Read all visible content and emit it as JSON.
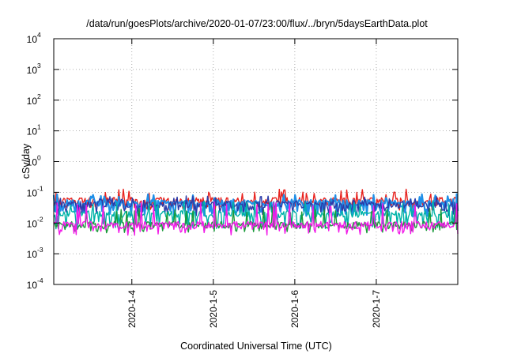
{
  "chart_data": {
    "type": "line",
    "title": "/data/run/goesPlots/archive/2020-01-07/23:00/flux/../bryn/5daysEarthData.plot",
    "xlabel": "Coordinated Universal Time (UTC)",
    "ylabel": "cSv/day",
    "yscale": "log",
    "ylim": [
      0.0001,
      10000
    ],
    "xlim": [
      "2020-01-03T01:00",
      "2020-01-08T00:00"
    ],
    "x_ticks": [
      "2020-1-4",
      "2020-1-5",
      "2020-1-6",
      "2020-1-7"
    ],
    "y_ticks": [
      {
        "base": "10",
        "exp": "4"
      },
      {
        "base": "10",
        "exp": "3"
      },
      {
        "base": "10",
        "exp": "2"
      },
      {
        "base": "10",
        "exp": "1"
      },
      {
        "base": "10",
        "exp": "0"
      },
      {
        "base": "10",
        "exp": "-1"
      },
      {
        "base": "10",
        "exp": "-2"
      },
      {
        "base": "10",
        "exp": "-3"
      },
      {
        "base": "10",
        "exp": "-4"
      }
    ],
    "grid": true,
    "series": [
      {
        "color": "#e8231f",
        "baseline": 0.055,
        "peak": 0.12,
        "floor": 0.03
      },
      {
        "color": "#1f8fe8",
        "baseline": 0.045,
        "peak": 0.08,
        "floor": 0.02
      },
      {
        "color": "#2b3ba8",
        "baseline": 0.04,
        "peak": 0.07,
        "floor": 0.02
      },
      {
        "color": "#00b3a8",
        "baseline": 0.02,
        "peak": 0.05,
        "floor": 0.008
      },
      {
        "color": "#1a9a3a",
        "baseline": 0.009,
        "peak": 0.03,
        "floor": 0.006
      },
      {
        "color": "#f21ae8",
        "baseline": 0.009,
        "peak": 0.045,
        "floor": 0.005
      }
    ]
  }
}
